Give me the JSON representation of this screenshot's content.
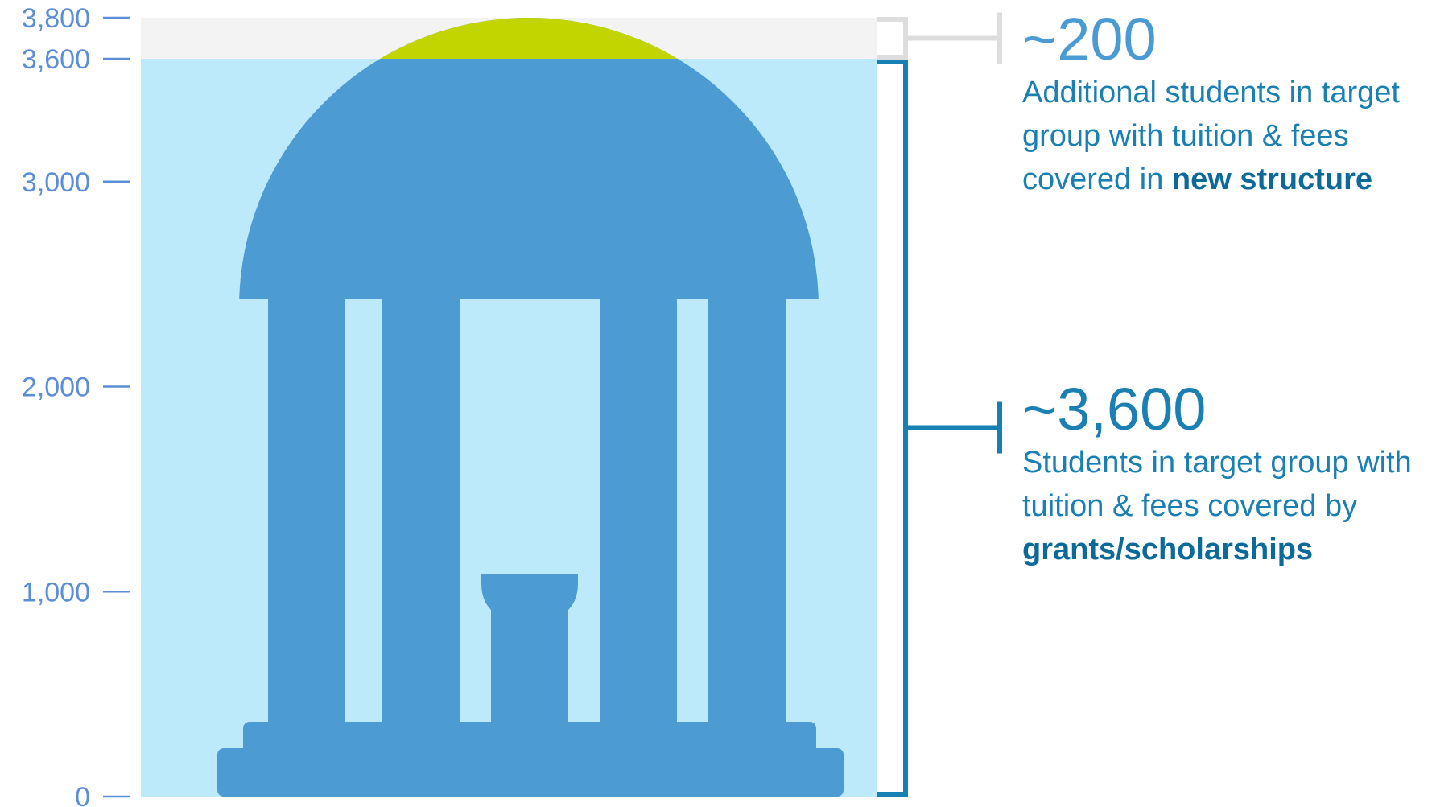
{
  "chart_data": {
    "type": "bar",
    "ylim": [
      0,
      3800
    ],
    "yticks": [
      0,
      1000,
      2000,
      3000,
      3600,
      3800
    ],
    "ytick_labels": [
      "0",
      "1,000",
      "2,000",
      "3,000",
      "3,600",
      "3,800"
    ],
    "segments": [
      {
        "value": 3600,
        "color": "#bdeafa",
        "callout_value": "~3,600",
        "callout_text_pre": "Students in target group with tuition & fees covered by ",
        "callout_text_bold": "grants/scholarships"
      },
      {
        "value": 200,
        "color": "#f3f3f3",
        "callout_value": "~200",
        "callout_text_pre": "Additional students in target group with tuition & fees covered in ",
        "callout_text_bold": "new structure"
      }
    ],
    "icon": "old-well-pavilion-icon",
    "colors": {
      "icon": "#4d9bd3",
      "dome_top": "#c2d500",
      "bracket_main": "#1580b1",
      "bracket_top": "#dddddd",
      "axis_text": "#5b8dd8"
    }
  }
}
